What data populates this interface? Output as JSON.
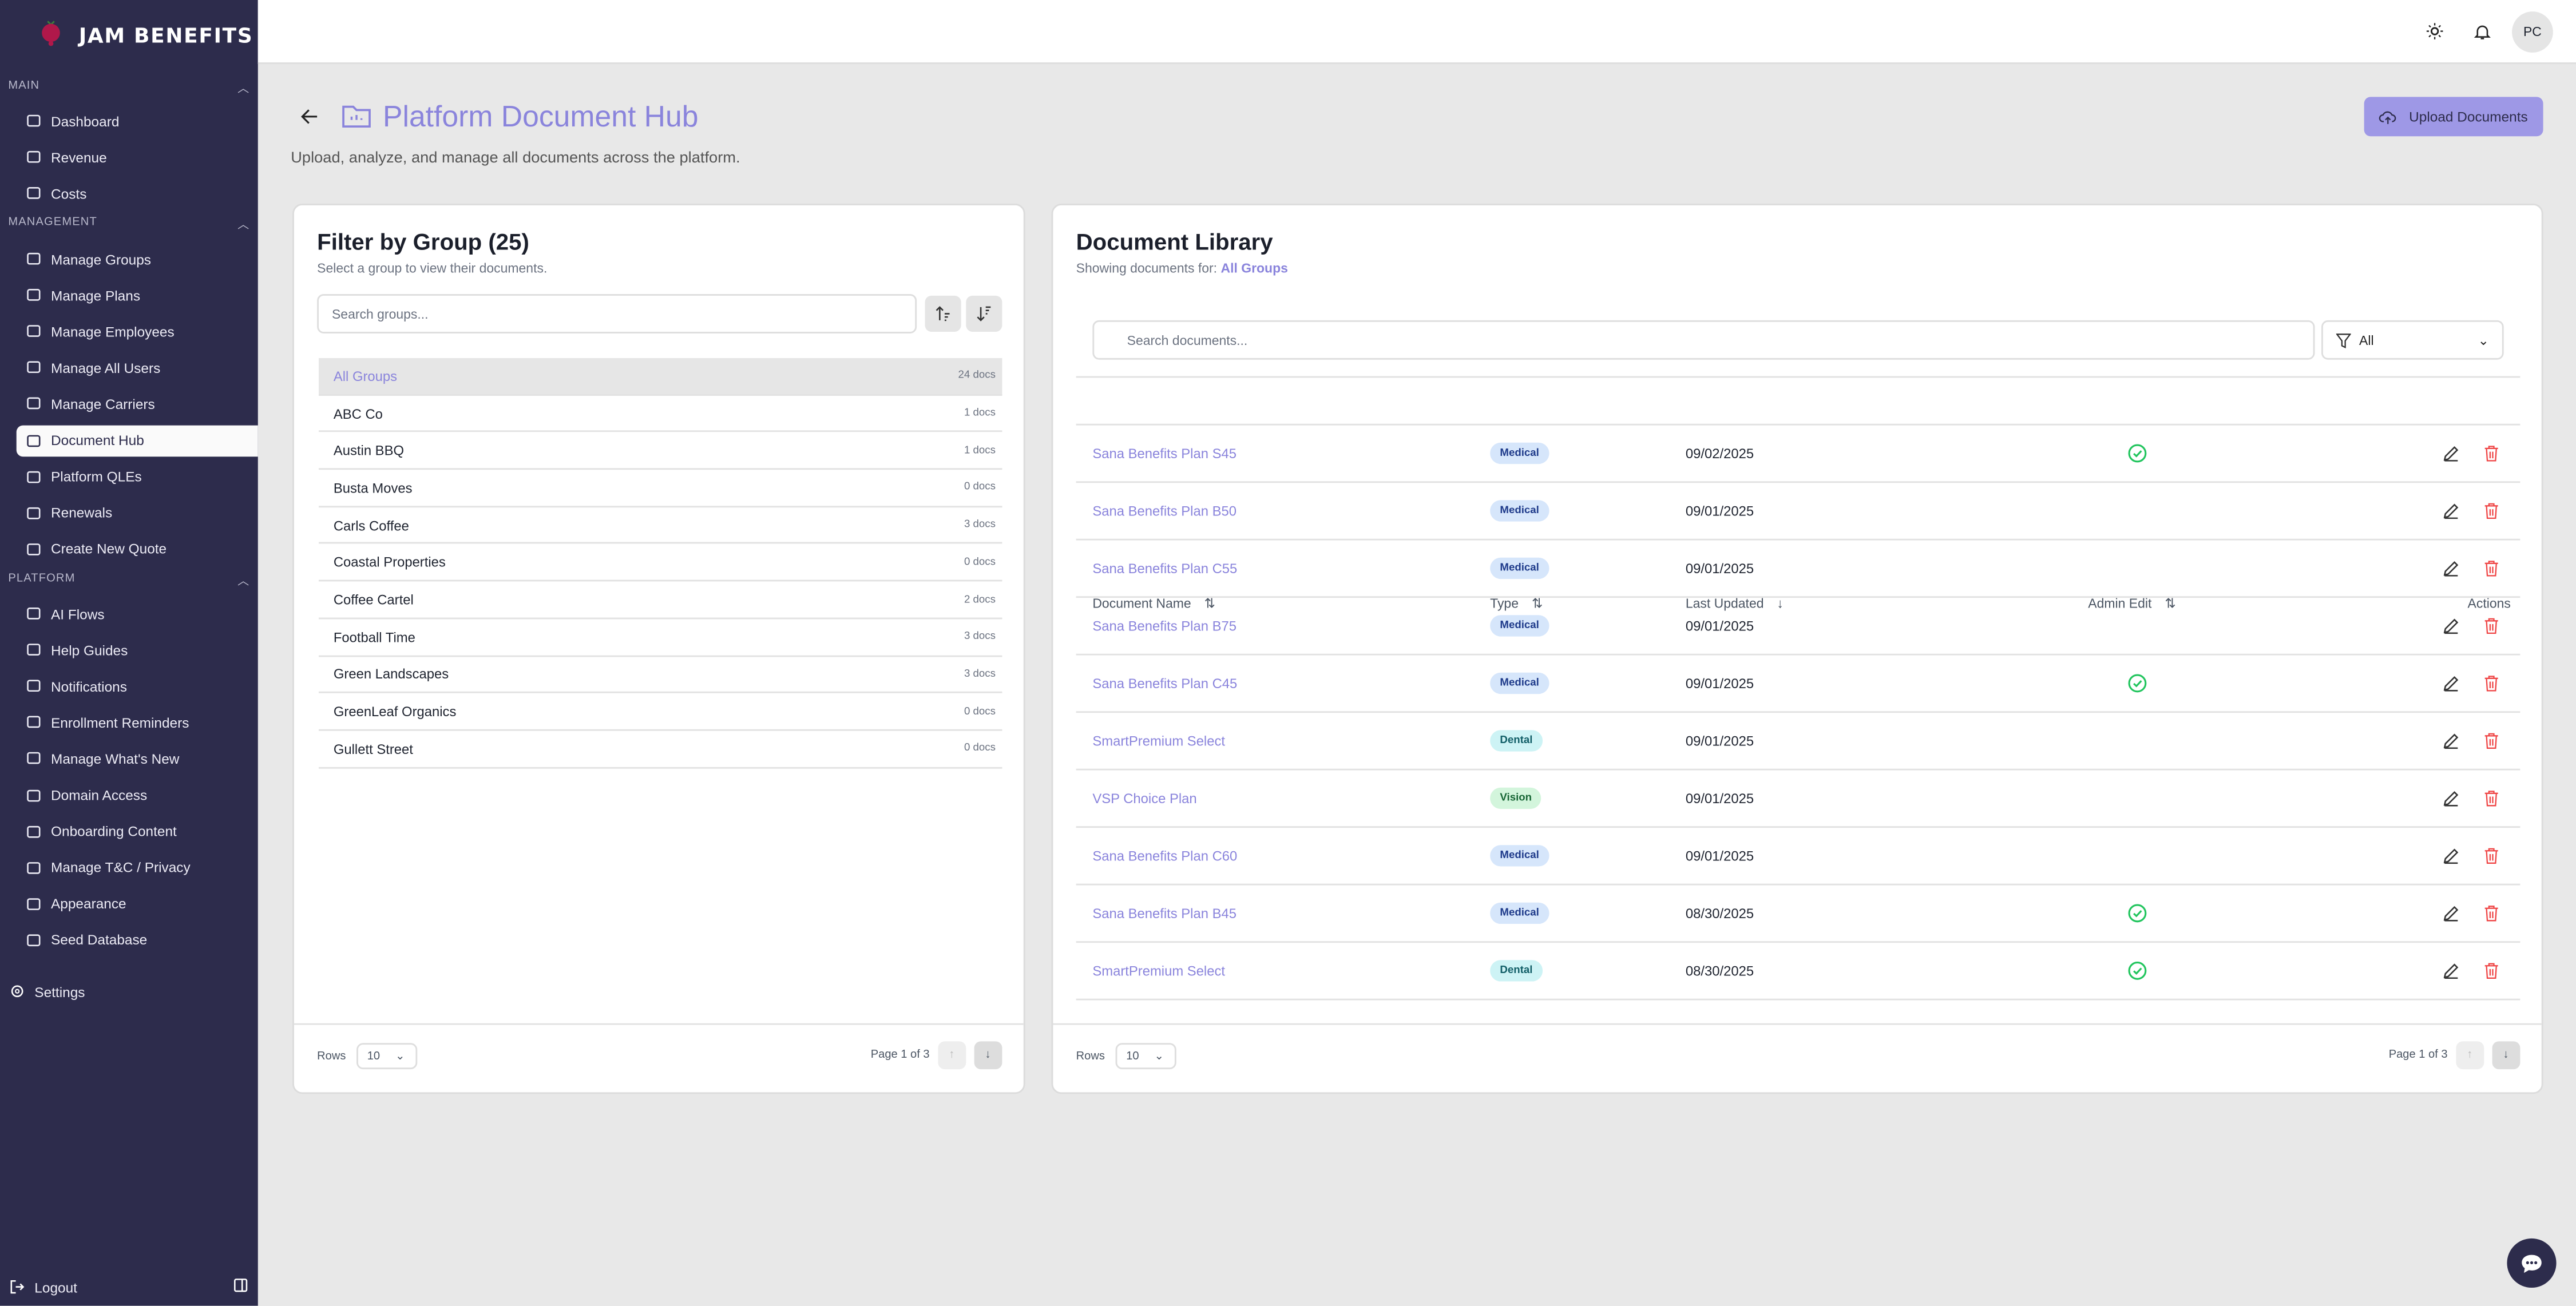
{
  "brand": {
    "name": "JAM BENEFITS"
  },
  "sidebar": {
    "sections": [
      {
        "label": "MAIN",
        "items": [
          {
            "label": "Dashboard",
            "icon": "dashboard-icon"
          },
          {
            "label": "Revenue",
            "icon": "trending-up-icon"
          },
          {
            "label": "Costs",
            "icon": "dollar-icon"
          }
        ]
      },
      {
        "label": "MANAGEMENT",
        "items": [
          {
            "label": "Manage Groups",
            "icon": "building-icon"
          },
          {
            "label": "Manage Plans",
            "icon": "grid-icon"
          },
          {
            "label": "Manage Employees",
            "icon": "users-icon"
          },
          {
            "label": "Manage All Users",
            "icon": "users-icon"
          },
          {
            "label": "Manage Carriers",
            "icon": "shield-icon"
          },
          {
            "label": "Document Hub",
            "icon": "folder-icon",
            "active": true
          },
          {
            "label": "Platform QLEs",
            "icon": "file-heart-icon"
          },
          {
            "label": "Renewals",
            "icon": "calendar-clock-icon"
          },
          {
            "label": "Create New Quote",
            "icon": "clipboard-plus-icon"
          }
        ]
      },
      {
        "label": "PLATFORM",
        "items": [
          {
            "label": "AI Flows",
            "icon": "sliders-icon"
          },
          {
            "label": "Help Guides",
            "icon": "book-icon"
          },
          {
            "label": "Notifications",
            "icon": "bell-icon"
          },
          {
            "label": "Enrollment Reminders",
            "icon": "mail-icon"
          },
          {
            "label": "Manage What's New",
            "icon": "rss-icon"
          },
          {
            "label": "Domain Access",
            "icon": "ban-icon"
          },
          {
            "label": "Onboarding Content",
            "icon": "message-icon"
          },
          {
            "label": "Manage T&C / Privacy",
            "icon": "gavel-icon"
          },
          {
            "label": "Appearance",
            "icon": "palette-icon"
          },
          {
            "label": "Seed Database",
            "icon": "database-icon"
          }
        ]
      }
    ],
    "settings": "Settings",
    "logout": "Logout"
  },
  "topbar": {
    "avatar": "PC"
  },
  "page": {
    "title": "Platform Document Hub",
    "subtitle": "Upload, analyze, and manage all documents across the platform.",
    "upload_label": "Upload Documents"
  },
  "groups": {
    "title": "Filter by Group (25)",
    "subtitle": "Select a group to view their documents.",
    "search_placeholder": "Search groups...",
    "items": [
      {
        "name": "All Groups",
        "count": "24 docs",
        "active": true
      },
      {
        "name": "ABC Co",
        "count": "1 docs"
      },
      {
        "name": "Austin BBQ",
        "count": "1 docs"
      },
      {
        "name": "Busta Moves",
        "count": "0 docs"
      },
      {
        "name": "Carls Coffee",
        "count": "3 docs"
      },
      {
        "name": "Coastal Properties",
        "count": "0 docs"
      },
      {
        "name": "Coffee Cartel",
        "count": "2 docs"
      },
      {
        "name": "Football Time",
        "count": "3 docs"
      },
      {
        "name": "Green Landscapes",
        "count": "3 docs"
      },
      {
        "name": "GreenLeaf Organics",
        "count": "0 docs"
      },
      {
        "name": "Gullett Street",
        "count": "0 docs"
      }
    ],
    "rows_label": "Rows",
    "rows_value": "10",
    "page_label": "Page 1 of 3"
  },
  "library": {
    "title": "Document Library",
    "subtitle_prefix": "Showing documents for:",
    "subtitle_group": "All Groups",
    "search_placeholder": "Search documents...",
    "filter_value": "All",
    "columns": [
      "Document Name",
      "Type",
      "Last Updated",
      "Admin Edit",
      "Actions"
    ],
    "rows": [
      {
        "name": "Sana Benefits Plan S45",
        "type": "Medical",
        "date": "09/02/2025",
        "admin_edit": true
      },
      {
        "name": "Sana Benefits Plan B50",
        "type": "Medical",
        "date": "09/01/2025",
        "admin_edit": false
      },
      {
        "name": "Sana Benefits Plan C55",
        "type": "Medical",
        "date": "09/01/2025",
        "admin_edit": false
      },
      {
        "name": "Sana Benefits Plan B75",
        "type": "Medical",
        "date": "09/01/2025",
        "admin_edit": false
      },
      {
        "name": "Sana Benefits Plan C45",
        "type": "Medical",
        "date": "09/01/2025",
        "admin_edit": true
      },
      {
        "name": "SmartPremium Select",
        "type": "Dental",
        "date": "09/01/2025",
        "admin_edit": false
      },
      {
        "name": "VSP Choice Plan",
        "type": "Vision",
        "date": "09/01/2025",
        "admin_edit": false
      },
      {
        "name": "Sana Benefits Plan C60",
        "type": "Medical",
        "date": "09/01/2025",
        "admin_edit": false
      },
      {
        "name": "Sana Benefits Plan B45",
        "type": "Medical",
        "date": "08/30/2025",
        "admin_edit": true
      },
      {
        "name": "SmartPremium Select",
        "type": "Dental",
        "date": "08/30/2025",
        "admin_edit": true
      }
    ],
    "rows_label": "Rows",
    "rows_value": "10",
    "page_label": "Page 1 of 3"
  },
  "colors": {
    "sidebar": "#2d2c4c",
    "accent": "#8a84dc",
    "upload_button": "#9e98e6",
    "medical_bg": "#d6e6fb",
    "medical_fg": "#1e3a8a",
    "dental_bg": "#cdf3f5",
    "dental_fg": "#115e67",
    "vision_bg": "#d3f5dc",
    "vision_fg": "#166534",
    "check": "#22c55e",
    "delete": "#ef4444"
  }
}
